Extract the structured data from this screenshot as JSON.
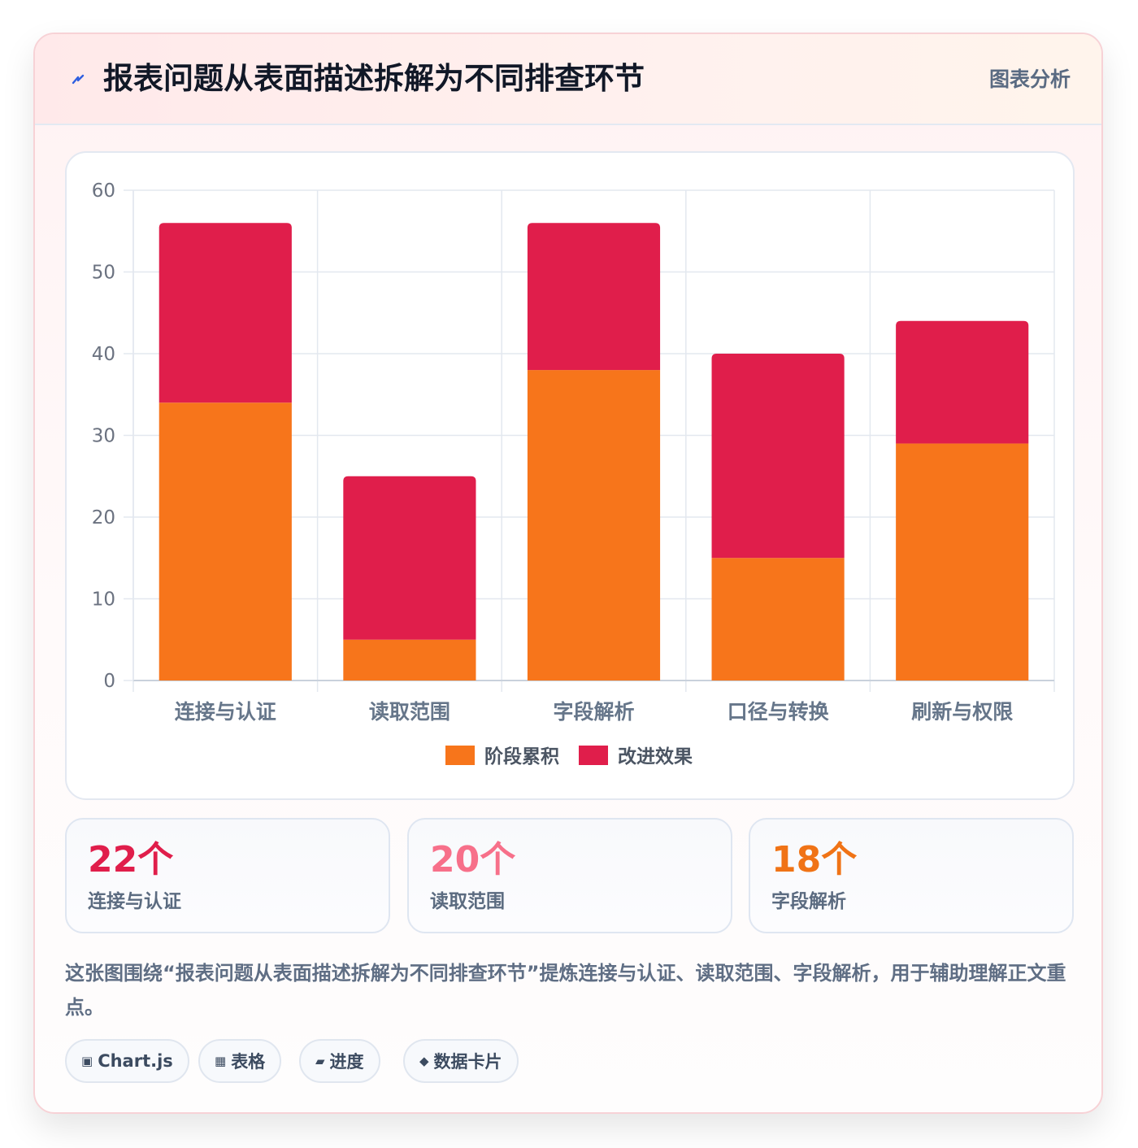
{
  "header": {
    "icon": "lightning-icon",
    "title": "报表问题从表面描述拆解为不同排查环节",
    "tag": "图表分析"
  },
  "chart_data": {
    "type": "bar",
    "stacked": true,
    "categories": [
      "连接与认证",
      "读取范围",
      "字段解析",
      "口径与转换",
      "刷新与权限"
    ],
    "series": [
      {
        "name": "阶段累积",
        "color": "#f7751b",
        "values": [
          34,
          5,
          38,
          15,
          29
        ]
      },
      {
        "name": "改进效果",
        "color": "#e01e4b",
        "values": [
          22,
          20,
          18,
          25,
          15
        ]
      }
    ],
    "ylim": [
      0,
      60
    ],
    "yticks": [
      "0",
      "10",
      "20",
      "30",
      "40",
      "50",
      "60"
    ],
    "grid": true,
    "legend_position": "bottom"
  },
  "stats": [
    {
      "value": "22个",
      "label": "连接与认证",
      "color": "#e01e4b"
    },
    {
      "value": "20个",
      "label": "读取范围",
      "color": "#f7708a"
    },
    {
      "value": "18个",
      "label": "字段解析",
      "color": "#f07316"
    }
  ],
  "description": "这张图围绕“报表问题从表面描述拆解为不同排查环节”提炼连接与认证、读取范围、字段解析，用于辅助理解正文重点。",
  "chips": [
    {
      "icon": "▣",
      "icon_name": "chart-icon",
      "label": "Chart.js"
    },
    {
      "icon": "▦",
      "icon_name": "table-icon",
      "label": "表格"
    },
    {
      "icon": "▰",
      "icon_name": "progress-icon",
      "label": "进度"
    },
    {
      "icon": "◆",
      "icon_name": "card-icon",
      "label": "数据卡片"
    }
  ]
}
